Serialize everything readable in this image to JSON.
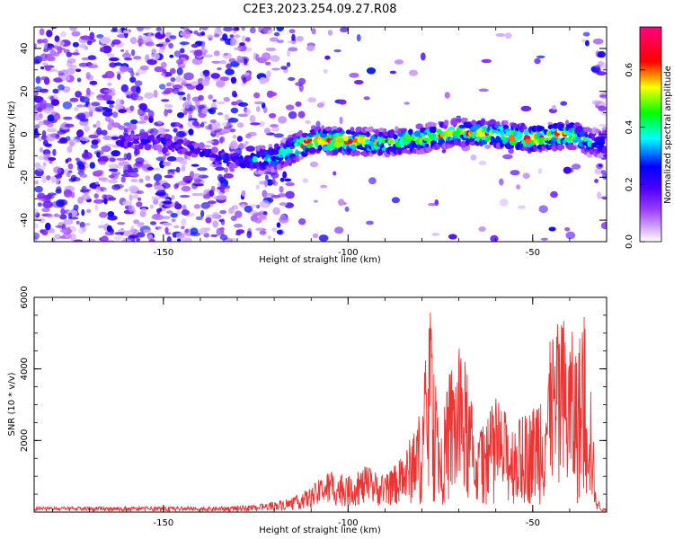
{
  "title": "C2E3.2023.254.09.27.R08",
  "colors": {
    "snr_line": "#ee3333",
    "axis": "#000000"
  },
  "chart_data": [
    {
      "type": "heatmap",
      "title": "",
      "xlabel": "Height of straight line (km)",
      "ylabel": "Frequency (Hz)",
      "xlim": [
        -185,
        -30
      ],
      "ylim": [
        -50,
        50
      ],
      "xticks": [
        -150,
        -100,
        -50
      ],
      "yticks": [
        -40,
        -20,
        0,
        20,
        40
      ],
      "colorbar": {
        "label": "Normalized spectral amplitude",
        "colormap": "rainbow (white-violet-blue-cyan-green-yellow-red-magenta)",
        "range": [
          0.0,
          0.75
        ],
        "ticks": [
          0.0,
          0.2,
          0.4,
          0.6
        ]
      },
      "ridge": {
        "description": "Ridge of high amplitude near 0 Hz",
        "x": [
          -160,
          -150,
          -140,
          -130,
          -120,
          -110,
          -100,
          -90,
          -80,
          -70,
          -60,
          -50,
          -40,
          -34
        ],
        "freq": [
          -3,
          -3,
          -8,
          -13,
          -11,
          -3,
          -3,
          -4,
          -2,
          1,
          0,
          -2,
          0,
          -4
        ],
        "peak_amplitude": [
          0.25,
          0.25,
          0.25,
          0.3,
          0.45,
          0.7,
          0.7,
          0.55,
          0.6,
          0.65,
          0.65,
          0.7,
          0.7,
          0.4
        ]
      }
    },
    {
      "type": "line",
      "title": "",
      "xlabel": "Height of straight line (km)",
      "ylabel": "SNR (10 * v/v)",
      "xlim": [
        -185,
        -30
      ],
      "ylim": [
        0,
        6000
      ],
      "xticks": [
        -150,
        -100,
        -50
      ],
      "yticks": [
        2000,
        4000,
        6000
      ],
      "x": [
        -185,
        -175,
        -165,
        -155,
        -145,
        -135,
        -125,
        -120,
        -115,
        -110,
        -105,
        -100,
        -95,
        -90,
        -85,
        -80,
        -78,
        -75,
        -72,
        -69,
        -65,
        -60,
        -55,
        -50,
        -46,
        -42,
        -38,
        -35,
        -33,
        -31
      ],
      "y": [
        150,
        150,
        150,
        150,
        150,
        150,
        200,
        300,
        400,
        700,
        1200,
        1000,
        1300,
        1000,
        1600,
        3000,
        5950,
        2200,
        4300,
        4700,
        2100,
        3200,
        2500,
        3000,
        4600,
        5600,
        4800,
        5900,
        500,
        100
      ]
    }
  ]
}
